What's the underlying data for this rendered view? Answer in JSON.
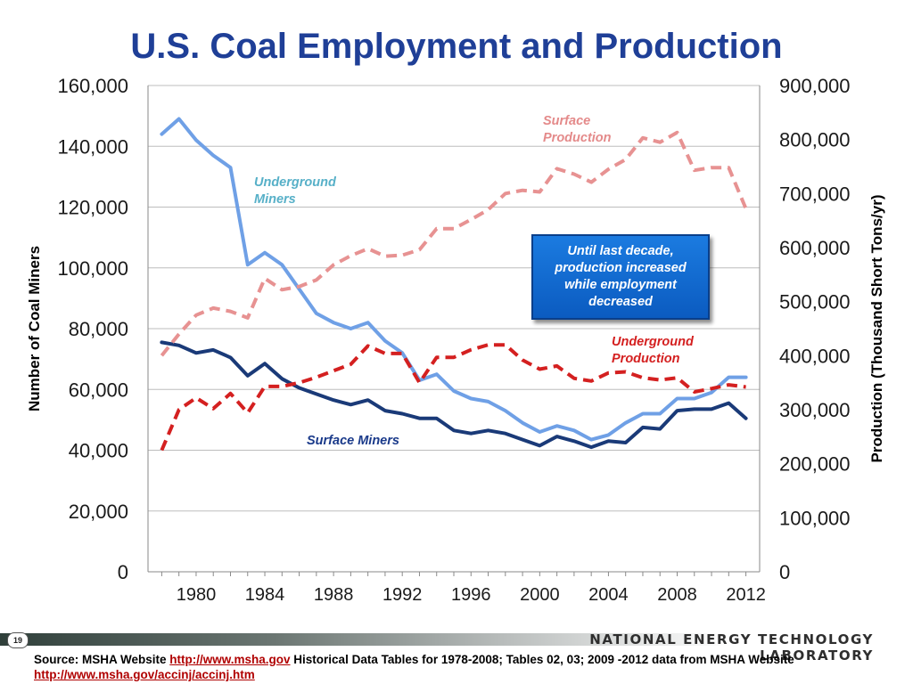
{
  "slide": {
    "title": "U.S. Coal Employment and Production",
    "page_number": "19",
    "lab_name": "NATIONAL ENERGY TECHNOLOGY LABORATORY",
    "callout": "Until last decade, production increased while employment decreased",
    "source": {
      "prefix": "Source: MSHA Website ",
      "link1": "http://www.msha.gov",
      "middle": " Historical Data Tables for 1978-2008; Tables 02, 03; 2009 -2012 data from MSHA Website ",
      "link2": "http://www.msha.gov/accinj/accinj.htm"
    }
  },
  "chart_data": {
    "type": "line",
    "title": "U.S. Coal Employment and Production",
    "ylabel": "Number of Coal Miners",
    "y2label": "Production (Thousand Short Tons/yr)",
    "ylim": [
      0,
      160000
    ],
    "y2lim": [
      0,
      900000
    ],
    "x": [
      1978,
      1979,
      1980,
      1981,
      1982,
      1983,
      1984,
      1985,
      1986,
      1987,
      1988,
      1989,
      1990,
      1991,
      1992,
      1993,
      1994,
      1995,
      1996,
      1997,
      1998,
      1999,
      2000,
      2001,
      2002,
      2003,
      2004,
      2005,
      2006,
      2007,
      2008,
      2009,
      2010,
      2011,
      2012
    ],
    "xticks": [
      1980,
      1984,
      1988,
      1992,
      1996,
      2000,
      2004,
      2008,
      2012
    ],
    "xtick_labels": [
      "1980",
      "1984",
      "1988",
      "1992",
      "1996",
      "2000",
      "2004",
      "2008",
      "2012"
    ],
    "yticks": [
      0,
      20000,
      40000,
      60000,
      80000,
      100000,
      120000,
      140000,
      160000
    ],
    "ytick_labels": [
      "0",
      "20,000",
      "40,000",
      "60,000",
      "80,000",
      "100,000",
      "120,000",
      "140,000",
      "160,000"
    ],
    "y2ticks": [
      0,
      100000,
      200000,
      300000,
      400000,
      500000,
      600000,
      700000,
      800000,
      900000
    ],
    "y2tick_labels": [
      "0",
      "100,000",
      "200,000",
      "300,000",
      "400,000",
      "500,000",
      "600,000",
      "700,000",
      "800,000",
      "900,000"
    ],
    "grid": true,
    "series": [
      {
        "name": "Underground Miners",
        "axis": "left",
        "style": "solid",
        "color": "#6fa0e6",
        "label_color": "#57b0c8",
        "values": [
          144000,
          149000,
          142000,
          137000,
          133000,
          101000,
          105000,
          101000,
          93000,
          85000,
          82000,
          80000,
          82000,
          76000,
          72000,
          63000,
          65000,
          59500,
          57000,
          56000,
          53000,
          49000,
          46000,
          48000,
          46500,
          43500,
          45000,
          49000,
          52000,
          52000,
          57000,
          57000,
          59000,
          64000,
          64000
        ]
      },
      {
        "name": "Surface Miners",
        "axis": "left",
        "style": "solid",
        "color": "#1a3a78",
        "label_color": "#1a3a8a",
        "values": [
          75500,
          74500,
          72000,
          73000,
          70500,
          64500,
          68500,
          63500,
          60500,
          58500,
          56500,
          55000,
          56500,
          53000,
          52000,
          50500,
          50500,
          46500,
          45500,
          46500,
          45500,
          43500,
          41500,
          44500,
          43000,
          41000,
          43000,
          42500,
          47500,
          47000,
          53000,
          53500,
          53500,
          55500,
          50500
        ]
      },
      {
        "name": "Surface Production",
        "axis": "right",
        "style": "dashed",
        "color": "#e79292",
        "label_color": "#e48a8a",
        "values": [
          400000,
          440000,
          475000,
          488000,
          482000,
          470000,
          543000,
          522000,
          528000,
          540000,
          568000,
          585000,
          598000,
          584000,
          586000,
          596000,
          635000,
          635000,
          652000,
          670000,
          700000,
          706000,
          703000,
          746000,
          736000,
          721000,
          745000,
          763000,
          803000,
          795000,
          813000,
          743000,
          748000,
          748000,
          672000
        ]
      },
      {
        "name": "Underground Production",
        "axis": "right",
        "style": "dashed",
        "color": "#d42020",
        "label_color": "#d42020",
        "values": [
          225000,
          300000,
          322000,
          302000,
          330000,
          294000,
          343000,
          343000,
          350000,
          360000,
          372000,
          384000,
          418000,
          404000,
          404000,
          350000,
          397000,
          397000,
          411000,
          420000,
          420000,
          392000,
          375000,
          381000,
          358000,
          353000,
          368000,
          370000,
          359000,
          355000,
          359000,
          333000,
          339000,
          346000,
          342000
        ]
      }
    ],
    "series_labels": [
      {
        "text": "Underground Miners"
      },
      {
        "text": "Surface Miners"
      },
      {
        "text": "Surface Production"
      },
      {
        "text": "Underground Production"
      }
    ]
  }
}
